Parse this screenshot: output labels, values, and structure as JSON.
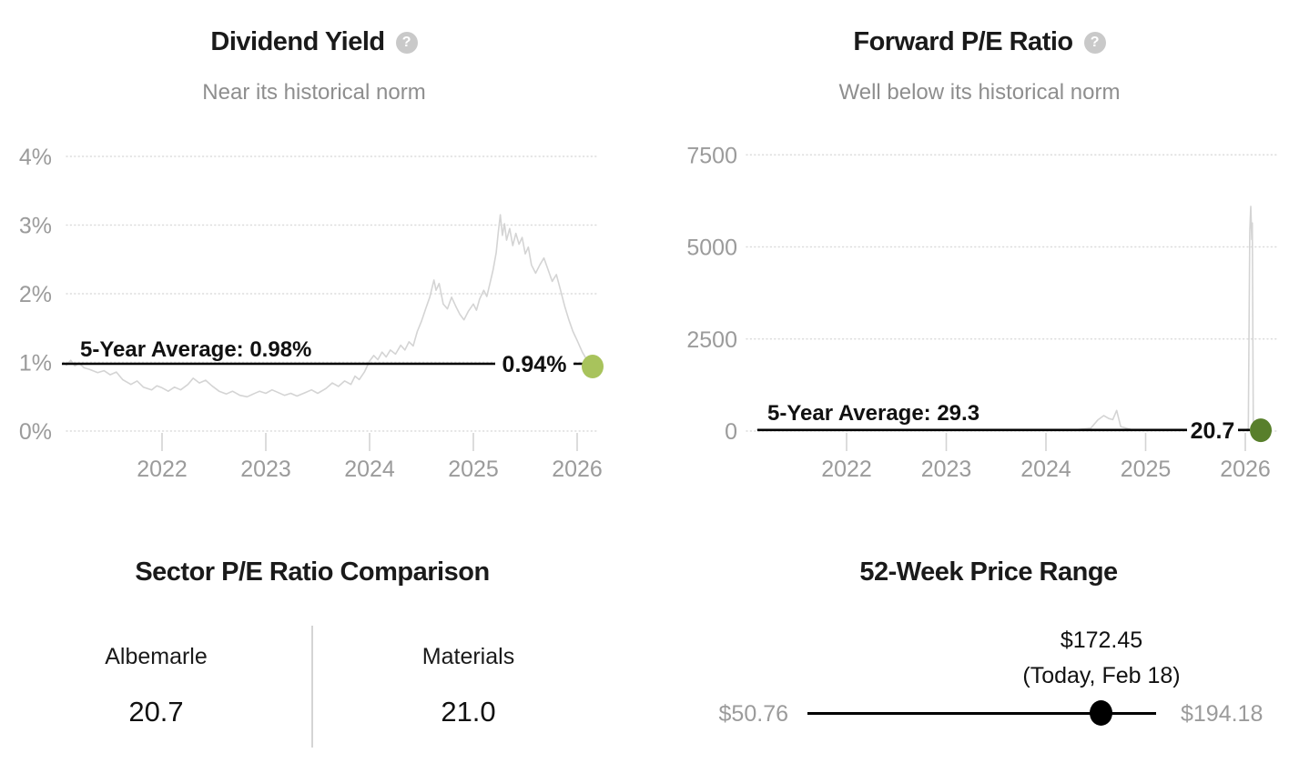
{
  "icons": {
    "help_glyph": "?"
  },
  "panels": {
    "dividend_yield": {
      "title": "Dividend Yield",
      "subtitle": "Near its historical norm"
    },
    "forward_pe": {
      "title": "Forward P/E Ratio",
      "subtitle": "Well below its historical norm"
    },
    "sector_comparison": {
      "title": "Sector P/E Ratio Comparison",
      "columns": [
        {
          "label": "Albemarle",
          "value": "20.7"
        },
        {
          "label": "Materials",
          "value": "21.0"
        }
      ]
    },
    "price_range": {
      "title": "52-Week Price Range",
      "current_price": "$172.45",
      "current_date": "(Today, Feb 18)",
      "low": "$50.76",
      "high": "$194.18",
      "low_value": 50.76,
      "high_value": 194.18,
      "current_value": 172.45
    }
  },
  "chart_data": [
    {
      "type": "line",
      "name": "dividend-yield-history",
      "title": "Dividend Yield",
      "x_ticks": [
        2022,
        2023,
        2024,
        2025,
        2026
      ],
      "xlim": [
        2021.05,
        2026.2
      ],
      "ylim": [
        0,
        4
      ],
      "y_ticks": [
        {
          "value": 4,
          "label": "4%"
        },
        {
          "value": 3,
          "label": "3%"
        },
        {
          "value": 2,
          "label": "2%"
        },
        {
          "value": 1,
          "label": "1%"
        },
        {
          "value": 0,
          "label": "0%"
        }
      ],
      "grid": "dotted",
      "line_color": "#d4d4d4",
      "average": {
        "value": 0.98,
        "label": "5-Year Average: 0.98%"
      },
      "current": {
        "x": 2026.14,
        "value": 0.94,
        "label": "0.94%"
      },
      "marker_color": "#a8c35c",
      "series": [
        [
          2021.05,
          1.0
        ],
        [
          2021.08,
          0.96
        ],
        [
          2021.12,
          1.03
        ],
        [
          2021.16,
          0.95
        ],
        [
          2021.2,
          0.99
        ],
        [
          2021.25,
          0.92
        ],
        [
          2021.3,
          0.9
        ],
        [
          2021.38,
          0.85
        ],
        [
          2021.44,
          0.88
        ],
        [
          2021.5,
          0.82
        ],
        [
          2021.56,
          0.86
        ],
        [
          2021.62,
          0.75
        ],
        [
          2021.7,
          0.68
        ],
        [
          2021.76,
          0.73
        ],
        [
          2021.82,
          0.64
        ],
        [
          2021.9,
          0.6
        ],
        [
          2021.95,
          0.66
        ],
        [
          2022.0,
          0.63
        ],
        [
          2022.06,
          0.58
        ],
        [
          2022.12,
          0.64
        ],
        [
          2022.18,
          0.6
        ],
        [
          2022.25,
          0.68
        ],
        [
          2022.3,
          0.77
        ],
        [
          2022.36,
          0.7
        ],
        [
          2022.42,
          0.74
        ],
        [
          2022.48,
          0.66
        ],
        [
          2022.55,
          0.58
        ],
        [
          2022.62,
          0.54
        ],
        [
          2022.68,
          0.58
        ],
        [
          2022.75,
          0.52
        ],
        [
          2022.82,
          0.5
        ],
        [
          2022.88,
          0.54
        ],
        [
          2022.94,
          0.58
        ],
        [
          2023.0,
          0.55
        ],
        [
          2023.06,
          0.6
        ],
        [
          2023.12,
          0.56
        ],
        [
          2023.18,
          0.52
        ],
        [
          2023.24,
          0.55
        ],
        [
          2023.3,
          0.51
        ],
        [
          2023.38,
          0.56
        ],
        [
          2023.44,
          0.6
        ],
        [
          2023.5,
          0.55
        ],
        [
          2023.58,
          0.62
        ],
        [
          2023.64,
          0.7
        ],
        [
          2023.7,
          0.65
        ],
        [
          2023.76,
          0.73
        ],
        [
          2023.82,
          0.68
        ],
        [
          2023.86,
          0.8
        ],
        [
          2023.9,
          0.75
        ],
        [
          2023.95,
          0.86
        ],
        [
          2024.0,
          1.02
        ],
        [
          2024.04,
          1.1
        ],
        [
          2024.08,
          1.04
        ],
        [
          2024.12,
          1.15
        ],
        [
          2024.16,
          1.08
        ],
        [
          2024.2,
          1.18
        ],
        [
          2024.25,
          1.12
        ],
        [
          2024.3,
          1.25
        ],
        [
          2024.34,
          1.18
        ],
        [
          2024.38,
          1.3
        ],
        [
          2024.42,
          1.24
        ],
        [
          2024.46,
          1.45
        ],
        [
          2024.5,
          1.6
        ],
        [
          2024.54,
          1.78
        ],
        [
          2024.58,
          1.95
        ],
        [
          2024.62,
          2.2
        ],
        [
          2024.64,
          2.05
        ],
        [
          2024.67,
          2.15
        ],
        [
          2024.71,
          1.85
        ],
        [
          2024.75,
          1.78
        ],
        [
          2024.79,
          1.95
        ],
        [
          2024.83,
          1.82
        ],
        [
          2024.87,
          1.7
        ],
        [
          2024.91,
          1.62
        ],
        [
          2024.95,
          1.74
        ],
        [
          2025.0,
          1.85
        ],
        [
          2025.03,
          1.76
        ],
        [
          2025.06,
          1.92
        ],
        [
          2025.1,
          2.05
        ],
        [
          2025.13,
          1.96
        ],
        [
          2025.16,
          2.15
        ],
        [
          2025.19,
          2.35
        ],
        [
          2025.22,
          2.6
        ],
        [
          2025.24,
          2.9
        ],
        [
          2025.26,
          3.15
        ],
        [
          2025.28,
          2.85
        ],
        [
          2025.3,
          3.02
        ],
        [
          2025.32,
          2.78
        ],
        [
          2025.35,
          2.95
        ],
        [
          2025.38,
          2.7
        ],
        [
          2025.41,
          2.88
        ],
        [
          2025.44,
          2.72
        ],
        [
          2025.47,
          2.82
        ],
        [
          2025.5,
          2.58
        ],
        [
          2025.53,
          2.68
        ],
        [
          2025.56,
          2.42
        ],
        [
          2025.6,
          2.3
        ],
        [
          2025.64,
          2.42
        ],
        [
          2025.68,
          2.52
        ],
        [
          2025.72,
          2.35
        ],
        [
          2025.76,
          2.18
        ],
        [
          2025.8,
          2.28
        ],
        [
          2025.84,
          2.05
        ],
        [
          2025.88,
          1.82
        ],
        [
          2025.92,
          1.62
        ],
        [
          2025.96,
          1.45
        ],
        [
          2026.0,
          1.32
        ],
        [
          2026.05,
          1.15
        ],
        [
          2026.1,
          1.02
        ],
        [
          2026.14,
          0.94
        ]
      ]
    },
    {
      "type": "line",
      "name": "forward-pe-history",
      "title": "Forward P/E Ratio",
      "x_ticks": [
        2022,
        2023,
        2024,
        2025,
        2026
      ],
      "xlim": [
        2021.1,
        2026.3
      ],
      "ylim": [
        0,
        7500
      ],
      "y_ticks": [
        {
          "value": 7500,
          "label": "7500"
        },
        {
          "value": 5000,
          "label": "5000"
        },
        {
          "value": 2500,
          "label": "2500"
        },
        {
          "value": 0,
          "label": "0"
        }
      ],
      "grid": "dotted",
      "line_color": "#d4d4d4",
      "average": {
        "value": 29.3,
        "label": "5-Year Average: 29.3"
      },
      "current": {
        "x": 2026.16,
        "value": 20.7,
        "label": "20.7"
      },
      "marker_color": "#587f2b",
      "series": [
        [
          2021.1,
          35
        ],
        [
          2021.5,
          30
        ],
        [
          2022.0,
          26
        ],
        [
          2022.5,
          22
        ],
        [
          2023.0,
          20
        ],
        [
          2023.5,
          22
        ],
        [
          2024.0,
          28
        ],
        [
          2024.3,
          35
        ],
        [
          2024.45,
          80
        ],
        [
          2024.52,
          300
        ],
        [
          2024.58,
          420
        ],
        [
          2024.63,
          340
        ],
        [
          2024.67,
          310
        ],
        [
          2024.71,
          560
        ],
        [
          2024.75,
          120
        ],
        [
          2024.85,
          45
        ],
        [
          2025.0,
          38
        ],
        [
          2025.5,
          32
        ],
        [
          2026.0,
          35
        ],
        [
          2026.03,
          60
        ],
        [
          2026.045,
          5400
        ],
        [
          2026.055,
          6100
        ],
        [
          2026.065,
          5200
        ],
        [
          2026.07,
          5650
        ],
        [
          2026.08,
          60
        ],
        [
          2026.16,
          20.7
        ]
      ]
    }
  ]
}
